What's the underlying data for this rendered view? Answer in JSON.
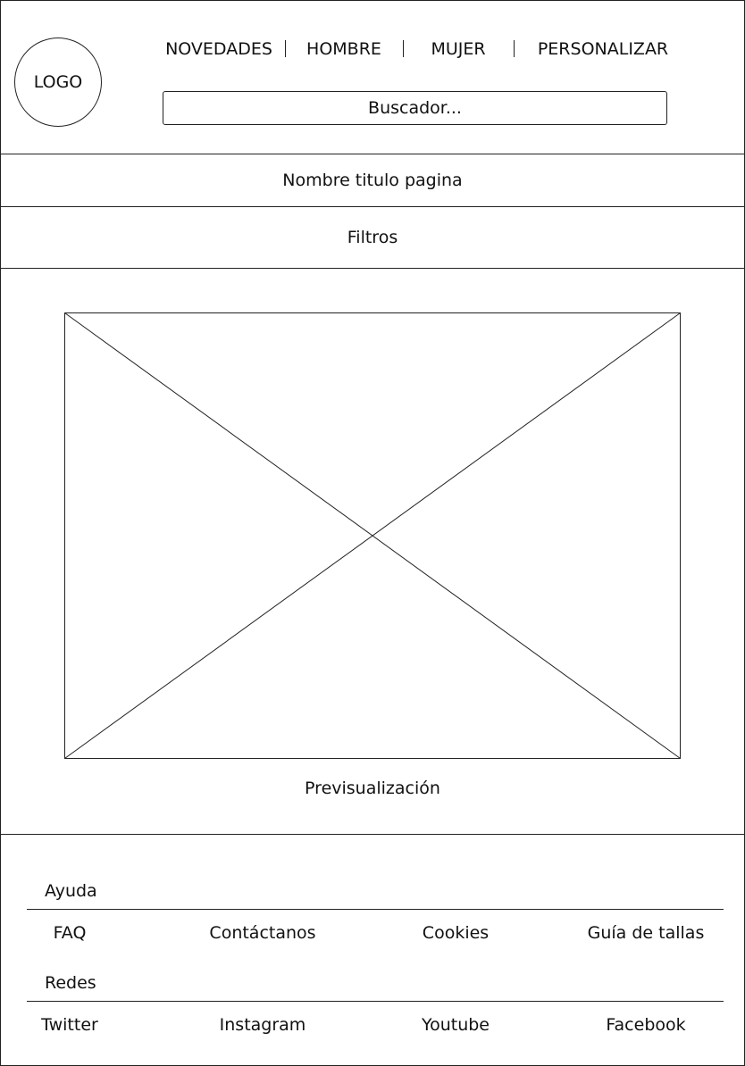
{
  "header": {
    "logo": "LOGO",
    "nav": [
      "NOVEDADES",
      "HOMBRE",
      "MUJER",
      "PERSONALIZAR"
    ],
    "search_value": "Buscador..."
  },
  "page_title": "Nombre titulo pagina",
  "filters_label": "Filtros",
  "preview": {
    "icon": "image-placeholder-icon",
    "caption": "Previsualización"
  },
  "footer": {
    "help": {
      "title": "Ayuda",
      "links": [
        "FAQ",
        "Contáctanos",
        "Cookies",
        "Guía de tallas"
      ]
    },
    "social": {
      "title": "Redes",
      "links": [
        "Twitter",
        "Instagram",
        "Youtube",
        "Facebook"
      ]
    }
  }
}
